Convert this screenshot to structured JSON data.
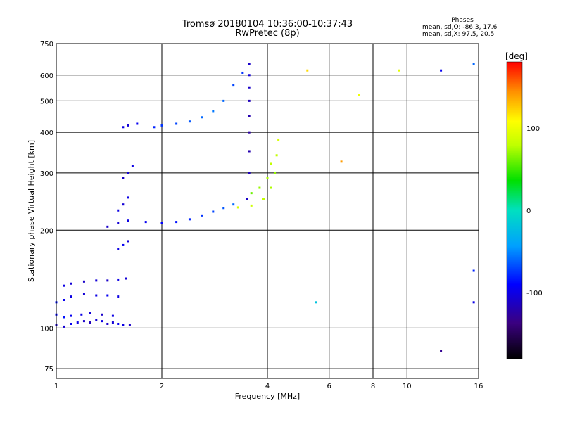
{
  "header": {
    "title_line1": "Tromsø 20180104 10:36:00-10:37:43",
    "title_line2": "RwPretec (8p)",
    "stats_title": "Phases",
    "stats_o": "mean, sd,O:  -86.3, 17.6",
    "stats_x": "mean, sd,X:  97.5, 20.5"
  },
  "chart_data": {
    "type": "scatter",
    "xlabel": "Frequency [MHz]",
    "ylabel": "Stationary phase Virtual Height [km]",
    "x_scale": "log",
    "y_scale": "log",
    "xlim": [
      1,
      16
    ],
    "ylim": [
      70,
      750
    ],
    "x_ticks": [
      {
        "v": 1,
        "label": "1"
      },
      {
        "v": 2,
        "label": "2"
      },
      {
        "v": 4,
        "label": "4"
      },
      {
        "v": 6,
        "label": "6"
      },
      {
        "v": 8,
        "label": "8"
      },
      {
        "v": 10,
        "label": "10"
      },
      {
        "v": 16,
        "label": "16"
      }
    ],
    "y_ticks": [
      {
        "v": 75,
        "label": "75"
      },
      {
        "v": 100,
        "label": "100"
      },
      {
        "v": 200,
        "label": "200"
      },
      {
        "v": 300,
        "label": "300"
      },
      {
        "v": 400,
        "label": "400"
      },
      {
        "v": 500,
        "label": "500"
      },
      {
        "v": 600,
        "label": "600"
      },
      {
        "v": 750,
        "label": "750"
      }
    ],
    "grid": true,
    "colorbar": {
      "label": "[deg]",
      "range": [
        -180,
        180
      ],
      "ticks": [
        {
          "v": 100,
          "label": "100"
        },
        {
          "v": 0,
          "label": "0"
        },
        {
          "v": -100,
          "label": "-100"
        }
      ]
    },
    "series": [
      {
        "points": [
          [
            1.0,
            102,
            -110
          ],
          [
            1.05,
            101,
            -105
          ],
          [
            1.1,
            103,
            -95
          ],
          [
            1.15,
            104,
            -100
          ],
          [
            1.2,
            105,
            -110
          ],
          [
            1.25,
            104,
            -115
          ],
          [
            1.3,
            106,
            -105
          ],
          [
            1.35,
            105,
            -100
          ],
          [
            1.4,
            103,
            -110
          ],
          [
            1.45,
            104,
            -105
          ],
          [
            1.5,
            103,
            -95
          ],
          [
            1.55,
            102,
            -100
          ],
          [
            1.62,
            102,
            -110
          ]
        ]
      },
      {
        "points": [
          [
            1.0,
            110,
            -90
          ],
          [
            1.05,
            108,
            -85
          ],
          [
            1.1,
            109,
            -95
          ],
          [
            1.18,
            110,
            -100
          ],
          [
            1.25,
            111,
            -105
          ],
          [
            1.35,
            110,
            -110
          ],
          [
            1.45,
            109,
            -100
          ]
        ]
      },
      {
        "points": [
          [
            1.0,
            120,
            -85
          ],
          [
            1.05,
            122,
            -95
          ],
          [
            1.1,
            125,
            -100
          ],
          [
            1.2,
            127,
            -105
          ],
          [
            1.3,
            126,
            -100
          ],
          [
            1.4,
            126,
            -95
          ],
          [
            1.5,
            125,
            -100
          ]
        ]
      },
      {
        "points": [
          [
            1.05,
            135,
            -100
          ],
          [
            1.1,
            137,
            -105
          ],
          [
            1.2,
            139,
            -110
          ],
          [
            1.3,
            140,
            -105
          ],
          [
            1.4,
            140,
            -110
          ],
          [
            1.5,
            141,
            -100
          ],
          [
            1.58,
            142,
            -105
          ]
        ]
      },
      {
        "points": [
          [
            1.5,
            175,
            -100
          ],
          [
            1.55,
            180,
            -95
          ],
          [
            1.6,
            185,
            -105
          ]
        ]
      },
      {
        "points": [
          [
            1.4,
            205,
            -110
          ],
          [
            1.5,
            210,
            -105
          ],
          [
            1.6,
            214,
            -100
          ],
          [
            1.8,
            212,
            -95
          ],
          [
            2.0,
            210,
            -90
          ],
          [
            2.2,
            212,
            -85
          ],
          [
            2.4,
            216,
            -80
          ],
          [
            2.6,
            222,
            -75
          ],
          [
            2.8,
            228,
            -70
          ],
          [
            3.0,
            234,
            -65
          ],
          [
            3.2,
            240,
            -60
          ]
        ]
      },
      {
        "points": [
          [
            1.5,
            230,
            -100
          ],
          [
            1.55,
            240,
            -105
          ],
          [
            1.6,
            252,
            -100
          ]
        ]
      },
      {
        "points": [
          [
            1.55,
            290,
            -110
          ],
          [
            1.6,
            300,
            -105
          ],
          [
            1.65,
            315,
            -100
          ]
        ]
      },
      {
        "points": [
          [
            1.55,
            415,
            -100
          ],
          [
            1.6,
            420,
            -105
          ],
          [
            1.7,
            425,
            -95
          ]
        ]
      },
      {
        "points": [
          [
            1.9,
            415,
            -80
          ],
          [
            2.0,
            420,
            -75
          ],
          [
            2.2,
            425,
            -70
          ],
          [
            2.4,
            432,
            -65
          ],
          [
            2.6,
            445,
            -60
          ],
          [
            2.8,
            465,
            -55
          ],
          [
            3.0,
            500,
            -60
          ],
          [
            3.2,
            560,
            -70
          ],
          [
            3.4,
            610,
            -75
          ]
        ]
      },
      {
        "points": [
          [
            3.5,
            250,
            -110
          ],
          [
            3.55,
            300,
            -115
          ],
          [
            3.55,
            350,
            -120
          ],
          [
            3.55,
            400,
            -125
          ],
          [
            3.55,
            450,
            -120
          ],
          [
            3.55,
            500,
            -115
          ],
          [
            3.55,
            550,
            -110
          ],
          [
            3.55,
            600,
            -105
          ],
          [
            3.55,
            650,
            -110
          ]
        ]
      },
      {
        "points": [
          [
            3.3,
            235,
            90
          ],
          [
            3.6,
            238,
            85
          ],
          [
            3.9,
            250,
            80
          ],
          [
            4.1,
            270,
            75
          ],
          [
            4.2,
            300,
            70
          ],
          [
            4.25,
            340,
            80
          ],
          [
            4.3,
            380,
            90
          ]
        ]
      },
      {
        "points": [
          [
            3.6,
            260,
            60
          ],
          [
            3.8,
            270,
            70
          ],
          [
            4.0,
            290,
            75
          ],
          [
            4.1,
            320,
            80
          ]
        ]
      },
      {
        "points": [
          [
            5.5,
            120,
            -20
          ],
          [
            9.5,
            620,
            95
          ],
          [
            12.5,
            620,
            -95
          ],
          [
            15.5,
            650,
            -60
          ],
          [
            15.5,
            150,
            -80
          ],
          [
            15.5,
            120,
            -100
          ],
          [
            12.5,
            85,
            -130
          ],
          [
            5.2,
            620,
            120
          ],
          [
            6.5,
            325,
            140
          ],
          [
            7.3,
            520,
            100
          ]
        ]
      }
    ]
  }
}
